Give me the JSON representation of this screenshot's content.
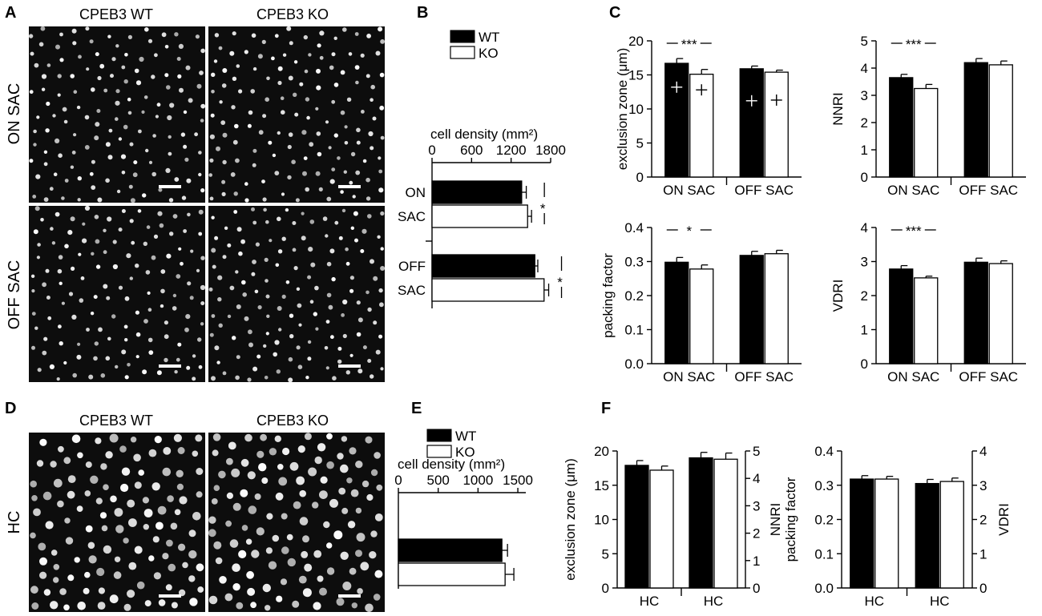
{
  "colors": {
    "wt": "#000000",
    "ko": "#ffffff",
    "micrograph_bg": "#0d0d0d",
    "cell": "#e8e8e8"
  },
  "panels": {
    "A": {
      "letter": "A",
      "columns": [
        "CPEB3 WT",
        "CPEB3 KO"
      ],
      "rows": [
        "ON SAC",
        "OFF SAC"
      ]
    },
    "B": {
      "letter": "B"
    },
    "C": {
      "letter": "C"
    },
    "D": {
      "letter": "D",
      "columns": [
        "CPEB3 WT",
        "CPEB3 KO"
      ],
      "rows": [
        "HC"
      ]
    },
    "E": {
      "letter": "E"
    },
    "F": {
      "letter": "F"
    }
  },
  "legend": {
    "wt": "WT",
    "ko": "KO"
  },
  "chart_data": [
    {
      "id": "B",
      "type": "bar",
      "orientation": "horizontal",
      "title": "cell density (mm²)",
      "xlim": [
        0,
        1800
      ],
      "xticks": [
        0,
        600,
        1200,
        1800
      ],
      "groups": [
        {
          "label": [
            "ON",
            "SAC"
          ],
          "wt": 1360,
          "ko": 1450,
          "wt_err": 70,
          "ko_err": 60,
          "sig": "*"
        },
        {
          "label": [
            "OFF",
            "SAC"
          ],
          "wt": 1560,
          "ko": 1700,
          "wt_err": 45,
          "ko_err": 70,
          "sig": "*"
        }
      ],
      "legend": [
        "WT",
        "KO"
      ]
    },
    {
      "id": "C1",
      "type": "bar",
      "ylabel": "exclusion zone (μm)",
      "ylim": [
        0,
        20
      ],
      "yticks": [
        0,
        5,
        10,
        15,
        20
      ],
      "categories": [
        "ON SAC",
        "OFF SAC"
      ],
      "wt": [
        16.7,
        15.9
      ],
      "ko": [
        15.1,
        15.4
      ],
      "wt_err": [
        0.7,
        0.4
      ],
      "ko_err": [
        0.7,
        0.3
      ],
      "inner_marks": {
        "wt": [
          13.2,
          11.2
        ],
        "ko": [
          12.8,
          11.3
        ]
      },
      "sig": [
        "***",
        ""
      ]
    },
    {
      "id": "C2",
      "type": "bar",
      "ylabel": "NNRI",
      "ylim": [
        0,
        5
      ],
      "yticks": [
        0,
        1,
        2,
        3,
        4,
        5
      ],
      "categories": [
        "ON SAC",
        "OFF SAC"
      ],
      "wt": [
        3.65,
        4.2
      ],
      "ko": [
        3.25,
        4.12
      ],
      "wt_err": [
        0.12,
        0.15
      ],
      "ko_err": [
        0.15,
        0.14
      ],
      "sig": [
        "***",
        ""
      ]
    },
    {
      "id": "C3",
      "type": "bar",
      "ylabel": "packing factor",
      "ylim": [
        0,
        0.4
      ],
      "yticks": [
        "0.0",
        "0.1",
        "0.2",
        "0.3",
        "0.4"
      ],
      "categories": [
        "ON SAC",
        "OFF SAC"
      ],
      "wt": [
        0.298,
        0.318
      ],
      "ko": [
        0.278,
        0.323
      ],
      "wt_err": [
        0.014,
        0.012
      ],
      "ko_err": [
        0.012,
        0.01
      ],
      "sig": [
        "*",
        ""
      ]
    },
    {
      "id": "C4",
      "type": "bar",
      "ylabel": "VDRI",
      "ylim": [
        0,
        4
      ],
      "yticks": [
        0,
        1,
        2,
        3,
        4
      ],
      "categories": [
        "ON SAC",
        "OFF SAC"
      ],
      "wt": [
        2.78,
        2.98
      ],
      "ko": [
        2.52,
        2.94
      ],
      "wt_err": [
        0.1,
        0.12
      ],
      "ko_err": [
        0.05,
        0.08
      ],
      "sig": [
        "***",
        ""
      ]
    },
    {
      "id": "E",
      "type": "bar",
      "orientation": "horizontal",
      "title": "cell density (mm²)",
      "xlim": [
        0,
        1600
      ],
      "xticks": [
        0,
        500,
        1000,
        1500
      ],
      "groups": [
        {
          "label": [],
          "wt": 1300,
          "ko": 1340,
          "wt_err": 70,
          "ko_err": 110,
          "sig": ""
        }
      ],
      "legend": [
        "WT",
        "KO"
      ]
    },
    {
      "id": "F1",
      "type": "bar",
      "ylabel": "exclusion zone (μm)",
      "ylim": [
        0,
        20
      ],
      "yticks": [
        0,
        5,
        10,
        15,
        20
      ],
      "ylabel_right": "NNRI",
      "ylim_right": [
        0,
        5
      ],
      "yticks_right": [
        0,
        1,
        2,
        3,
        4,
        5
      ],
      "categories": [
        "HC",
        "HC"
      ],
      "wt": [
        17.9,
        19.0
      ],
      "ko": [
        17.2,
        18.8
      ],
      "wt_err": [
        0.7,
        0.8
      ],
      "ko_err": [
        0.6,
        0.9
      ]
    },
    {
      "id": "F2",
      "type": "bar",
      "ylabel": "packing factor",
      "ylim": [
        0,
        0.4
      ],
      "yticks": [
        "0.0",
        "0.1",
        "0.2",
        "0.3",
        "0.4"
      ],
      "ylabel_right": "VDRI",
      "ylim_right": [
        0,
        4
      ],
      "yticks_right": [
        0,
        1,
        2,
        3,
        4
      ],
      "categories": [
        "HC",
        "HC"
      ],
      "wt": [
        0.318,
        0.305
      ],
      "ko": [
        0.318,
        0.311
      ],
      "wt_err": [
        0.01,
        0.012
      ],
      "ko_err": [
        0.008,
        0.01
      ]
    }
  ]
}
